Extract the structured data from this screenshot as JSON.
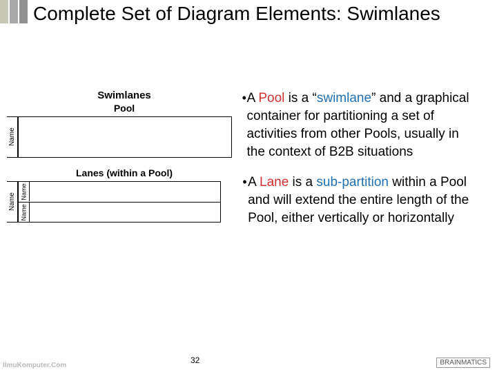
{
  "accent_bars": [
    "#c8c8b8",
    "#a8a8a8",
    "#909090"
  ],
  "title": "Complete Set of Diagram Elements: Swimlanes",
  "diagram": {
    "heading": "Swimlanes",
    "pool_label": "Pool",
    "pool_side": "Name",
    "lanes_label": "Lanes (within a Pool)",
    "lanes_side": "Name",
    "lane_row_label": "Name"
  },
  "bullets": [
    {
      "pre": "A ",
      "hl1": "Pool",
      "mid": " is a “",
      "hl2": "swimlane",
      "post": "” and a graphical container for partitioning a set of activities from other Pools, usually in the context of B2B situations"
    },
    {
      "pre": "A ",
      "hl1": "Lane",
      "mid": " is a ",
      "hl2": "sub-partition",
      "post": " within a Pool and will extend the entire length of the Pool, either vertically or horizontally"
    }
  ],
  "page_number": "32",
  "footer_left": "IlmuKomputer.Com",
  "footer_right": "BRAINMATICS"
}
